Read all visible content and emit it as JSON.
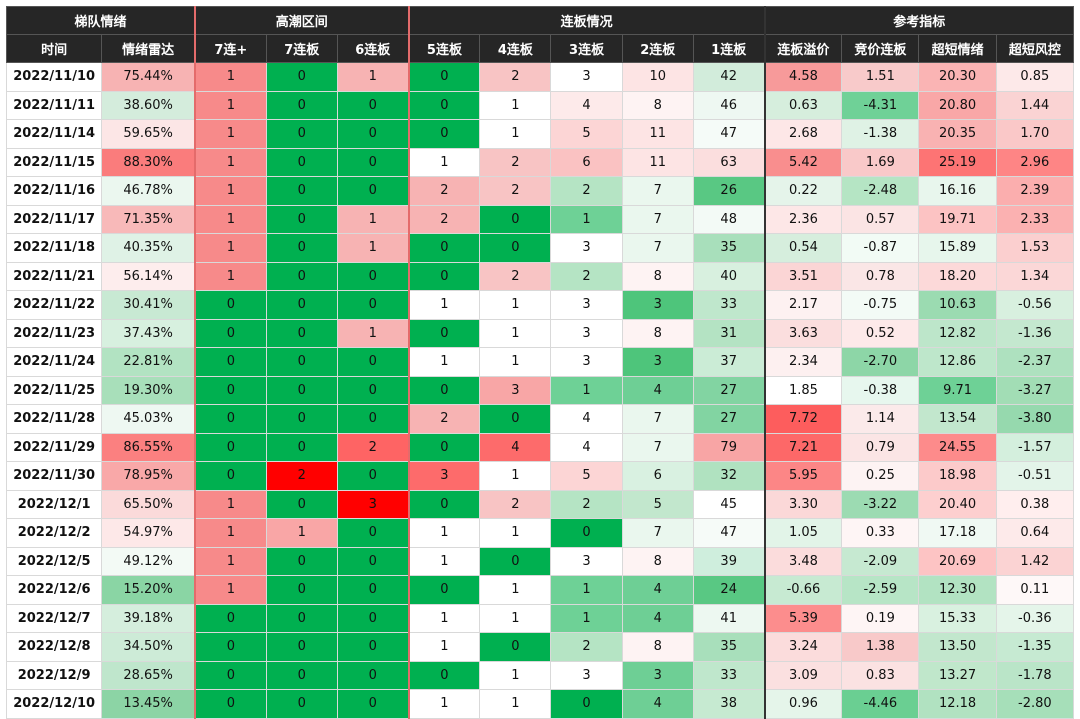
{
  "chart_data": {
    "type": "table",
    "groups": [
      {
        "label": "梯队情绪",
        "span": 2
      },
      {
        "label": "高潮区间",
        "span": 3
      },
      {
        "label": "连板情况",
        "span": 5
      },
      {
        "label": "参考指标",
        "span": 4
      }
    ],
    "columns": [
      "时间",
      "情绪雷达",
      "7连+",
      "7连板",
      "6连板",
      "5连板",
      "4连板",
      "3连板",
      "2连板",
      "1连板",
      "连板溢价",
      "竞价连板",
      "超短情绪",
      "超短风控"
    ],
    "rows": [
      [
        "2022/11/10",
        "75.44%",
        "1",
        "0",
        "1",
        "0",
        "2",
        "3",
        "10",
        "42",
        "4.58",
        "1.51",
        "20.30",
        "0.85"
      ],
      [
        "2022/11/11",
        "38.60%",
        "1",
        "0",
        "0",
        "0",
        "1",
        "4",
        "8",
        "46",
        "0.63",
        "-4.31",
        "20.80",
        "1.44"
      ],
      [
        "2022/11/14",
        "59.65%",
        "1",
        "0",
        "0",
        "0",
        "1",
        "5",
        "11",
        "47",
        "2.68",
        "-1.38",
        "20.35",
        "1.70"
      ],
      [
        "2022/11/15",
        "88.30%",
        "1",
        "0",
        "0",
        "1",
        "2",
        "6",
        "11",
        "63",
        "5.42",
        "1.69",
        "25.19",
        "2.96"
      ],
      [
        "2022/11/16",
        "46.78%",
        "1",
        "0",
        "0",
        "2",
        "2",
        "2",
        "7",
        "26",
        "0.22",
        "-2.48",
        "16.16",
        "2.39"
      ],
      [
        "2022/11/17",
        "71.35%",
        "1",
        "0",
        "1",
        "2",
        "0",
        "1",
        "7",
        "48",
        "2.36",
        "0.57",
        "19.71",
        "2.33"
      ],
      [
        "2022/11/18",
        "40.35%",
        "1",
        "0",
        "1",
        "0",
        "0",
        "3",
        "7",
        "35",
        "0.54",
        "-0.87",
        "15.89",
        "1.53"
      ],
      [
        "2022/11/21",
        "56.14%",
        "1",
        "0",
        "0",
        "0",
        "2",
        "2",
        "8",
        "40",
        "3.51",
        "0.78",
        "18.20",
        "1.34"
      ],
      [
        "2022/11/22",
        "30.41%",
        "0",
        "0",
        "0",
        "1",
        "1",
        "3",
        "3",
        "33",
        "2.17",
        "-0.75",
        "10.63",
        "-0.56"
      ],
      [
        "2022/11/23",
        "37.43%",
        "0",
        "0",
        "1",
        "0",
        "1",
        "3",
        "8",
        "31",
        "3.63",
        "0.52",
        "12.82",
        "-1.36"
      ],
      [
        "2022/11/24",
        "22.81%",
        "0",
        "0",
        "0",
        "1",
        "1",
        "3",
        "3",
        "37",
        "2.34",
        "-2.70",
        "12.86",
        "-2.37"
      ],
      [
        "2022/11/25",
        "19.30%",
        "0",
        "0",
        "0",
        "0",
        "3",
        "1",
        "4",
        "27",
        "1.85",
        "-0.38",
        "9.71",
        "-3.27"
      ],
      [
        "2022/11/28",
        "45.03%",
        "0",
        "0",
        "0",
        "2",
        "0",
        "4",
        "7",
        "27",
        "7.72",
        "1.14",
        "13.54",
        "-3.80"
      ],
      [
        "2022/11/29",
        "86.55%",
        "0",
        "0",
        "2",
        "0",
        "4",
        "4",
        "7",
        "79",
        "7.21",
        "0.79",
        "24.55",
        "-1.57"
      ],
      [
        "2022/11/30",
        "78.95%",
        "0",
        "2",
        "0",
        "3",
        "1",
        "5",
        "6",
        "32",
        "5.95",
        "0.25",
        "18.98",
        "-0.51"
      ],
      [
        "2022/12/1",
        "65.50%",
        "1",
        "0",
        "3",
        "0",
        "2",
        "2",
        "5",
        "45",
        "3.30",
        "-3.22",
        "20.40",
        "0.38"
      ],
      [
        "2022/12/2",
        "54.97%",
        "1",
        "1",
        "0",
        "1",
        "1",
        "0",
        "7",
        "47",
        "1.05",
        "0.33",
        "17.18",
        "0.64"
      ],
      [
        "2022/12/5",
        "49.12%",
        "1",
        "0",
        "0",
        "1",
        "0",
        "3",
        "8",
        "39",
        "3.48",
        "-2.09",
        "20.69",
        "1.42"
      ],
      [
        "2022/12/6",
        "15.20%",
        "1",
        "0",
        "0",
        "0",
        "1",
        "1",
        "4",
        "24",
        "-0.66",
        "-2.59",
        "12.30",
        "0.11"
      ],
      [
        "2022/12/7",
        "39.18%",
        "0",
        "0",
        "0",
        "1",
        "1",
        "1",
        "4",
        "41",
        "5.39",
        "0.19",
        "15.33",
        "-0.36"
      ],
      [
        "2022/12/8",
        "34.50%",
        "0",
        "0",
        "0",
        "1",
        "0",
        "2",
        "8",
        "35",
        "3.24",
        "1.38",
        "13.50",
        "-1.35"
      ],
      [
        "2022/12/9",
        "28.65%",
        "0",
        "0",
        "0",
        "0",
        "1",
        "3",
        "3",
        "33",
        "3.09",
        "0.83",
        "13.27",
        "-1.78"
      ],
      [
        "2022/12/10",
        "13.45%",
        "0",
        "0",
        "0",
        "1",
        "1",
        "0",
        "4",
        "38",
        "0.96",
        "-4.46",
        "12.18",
        "-2.80"
      ]
    ],
    "cell_colors": [
      [
        "#ffffff",
        "#f7b3b3",
        "#f78a8a",
        "#00b050",
        "#f7b3b3",
        "#00b050",
        "#f8c4c4",
        "#ffffff",
        "#fde4e4",
        "#d2ecdb",
        "#f79a9a",
        "#f8caca",
        "#fab4b4",
        "#fde9e9"
      ],
      [
        "#ffffff",
        "#d4ecdc",
        "#f78a8a",
        "#00b050",
        "#00b050",
        "#00b050",
        "#ffffff",
        "#fdeaea",
        "#fef3f3",
        "#eef8f2",
        "#d6eedd",
        "#6fd197",
        "#f9a7a7",
        "#fad3d3"
      ],
      [
        "#ffffff",
        "#fce6e6",
        "#f78a8a",
        "#00b050",
        "#00b050",
        "#00b050",
        "#ffffff",
        "#fcd5d5",
        "#fde4e4",
        "#f5fbf8",
        "#fde7e7",
        "#dff2e5",
        "#f9b2b2",
        "#fac8c8"
      ],
      [
        "#ffffff",
        "#fa7c7c",
        "#f78a8a",
        "#00b050",
        "#00b050",
        "#ffffff",
        "#f8c4c4",
        "#fac2c2",
        "#fde4e4",
        "#fbdede",
        "#f98e8e",
        "#f9c9c9",
        "#fd7474",
        "#fe8585"
      ],
      [
        "#ffffff",
        "#ebf7ef",
        "#f78a8a",
        "#00b050",
        "#00b050",
        "#f7b3b3",
        "#f8c4c4",
        "#b5e4c4",
        "#eaf7ee",
        "#59c883",
        "#e5f4ea",
        "#b5e5c4",
        "#e8f6ed",
        "#fbaeae"
      ],
      [
        "#ffffff",
        "#f8b9b9",
        "#f78a8a",
        "#00b050",
        "#f7b3b3",
        "#f7b3b3",
        "#00b050",
        "#6ed196",
        "#eaf7ee",
        "#f3faf6",
        "#fde7e7",
        "#fbe4e4",
        "#fcc3c3",
        "#fbb1b1"
      ],
      [
        "#ffffff",
        "#dff2e6",
        "#f78a8a",
        "#00b050",
        "#f7b3b3",
        "#00b050",
        "#00b050",
        "#ffffff",
        "#eaf7ee",
        "#a8dfbb",
        "#d6eedd",
        "#f2fbf5",
        "#e7f6ec",
        "#fbcfcf"
      ],
      [
        "#ffffff",
        "#fdeded",
        "#f78a8a",
        "#00b050",
        "#00b050",
        "#00b050",
        "#f8c4c4",
        "#b5e4c4",
        "#fef3f3",
        "#d8f0df",
        "#fbd5d5",
        "#fae6e6",
        "#fcd9d9",
        "#fbd7d7"
      ],
      [
        "#ffffff",
        "#c8e9d3",
        "#00b050",
        "#00b050",
        "#00b050",
        "#ffffff",
        "#ffffff",
        "#ffffff",
        "#4ec57b",
        "#bfe7cc",
        "#fdf1f1",
        "#f3fbf6",
        "#9bdbb1",
        "#d8f0df"
      ],
      [
        "#ffffff",
        "#d7f0df",
        "#00b050",
        "#00b050",
        "#f7b3b3",
        "#00b050",
        "#ffffff",
        "#ffffff",
        "#fef3f3",
        "#b4e3c3",
        "#fbdede",
        "#fde9e9",
        "#bde6ca",
        "#c4e8cf"
      ],
      [
        "#ffffff",
        "#b2e3c2",
        "#00b050",
        "#00b050",
        "#00b050",
        "#ffffff",
        "#ffffff",
        "#ffffff",
        "#4ec57b",
        "#cbecd6",
        "#fdf0f0",
        "#8dd6a7",
        "#bee7cb",
        "#aee1bf"
      ],
      [
        "#ffffff",
        "#a8dfba",
        "#00b050",
        "#00b050",
        "#00b050",
        "#00b050",
        "#f8a6a6",
        "#6ed196",
        "#6ecf95",
        "#82d4a2",
        "#ffffff",
        "#e7f7ee",
        "#6ed196",
        "#a2ddb5"
      ],
      [
        "#ffffff",
        "#eef8f2",
        "#00b050",
        "#00b050",
        "#00b050",
        "#f7b3b3",
        "#00b050",
        "#ffffff",
        "#eaf7ee",
        "#82d4a2",
        "#fd5d5d",
        "#fbeaea",
        "#c2e7cd",
        "#96d9ae"
      ],
      [
        "#ffffff",
        "#fb8080",
        "#00b050",
        "#00b050",
        "#fe6464",
        "#00b050",
        "#fd6b6b",
        "#ffffff",
        "#eaf7ee",
        "#f8a5a5",
        "#fd6868",
        "#fbe5e5",
        "#fd8b8b",
        "#d4efdd"
      ],
      [
        "#ffffff",
        "#f9a8a8",
        "#00b050",
        "#ff0000",
        "#00b050",
        "#fd6b6b",
        "#ffffff",
        "#fcd5d5",
        "#d9f1e1",
        "#b0e2c0",
        "#fc8686",
        "#fdf3f3",
        "#fccaca",
        "#e3f4e9"
      ],
      [
        "#ffffff",
        "#fbdada",
        "#f78a8a",
        "#00b050",
        "#ff0000",
        "#00b050",
        "#f8c4c4",
        "#b5e4c4",
        "#c2e7cd",
        "#ffffff",
        "#fbd8d8",
        "#9cdbb2",
        "#fdcfcf",
        "#ffeeee"
      ],
      [
        "#ffffff",
        "#fde8e8",
        "#f78a8a",
        "#f9a6a6",
        "#00b050",
        "#ffffff",
        "#ffffff",
        "#00b050",
        "#eaf7ee",
        "#f6fbf8",
        "#e2f4e8",
        "#fef5f5",
        "#f0f9f3",
        "#fdeaea"
      ],
      [
        "#ffffff",
        "#f3faf5",
        "#f78a8a",
        "#00b050",
        "#00b050",
        "#ffffff",
        "#00b050",
        "#ffffff",
        "#fef3f3",
        "#cfeedd",
        "#fbdcdc",
        "#c6e9d1",
        "#fdc4c4",
        "#fbd3d3"
      ],
      [
        "#ffffff",
        "#8ad5a4",
        "#f78a8a",
        "#00b050",
        "#00b050",
        "#00b050",
        "#ffffff",
        "#6ed196",
        "#6ecf95",
        "#59c883",
        "#c7ead2",
        "#b7e5c6",
        "#b2e3c2",
        "#fef8f8"
      ],
      [
        "#ffffff",
        "#d5eedd",
        "#00b050",
        "#00b050",
        "#00b050",
        "#ffffff",
        "#ffffff",
        "#6ed196",
        "#6ecf95",
        "#edf8f1",
        "#fc8d8d",
        "#fef5f5",
        "#d9f1e0",
        "#e5f5ea"
      ],
      [
        "#ffffff",
        "#cdebd7",
        "#00b050",
        "#00b050",
        "#00b050",
        "#ffffff",
        "#00b050",
        "#b5e4c4",
        "#fef3f3",
        "#a8dfbb",
        "#fbdcdc",
        "#f8c9c9",
        "#c2e7cd",
        "#c6ead2"
      ],
      [
        "#ffffff",
        "#bfe6cc",
        "#00b050",
        "#00b050",
        "#00b050",
        "#00b050",
        "#ffffff",
        "#ffffff",
        "#6ecf95",
        "#bfe7cc",
        "#fbe0e0",
        "#fbe2e2",
        "#c0e7cb",
        "#bae5c8"
      ],
      [
        "#ffffff",
        "#8cd4a5",
        "#00b050",
        "#00b050",
        "#00b050",
        "#ffffff",
        "#ffffff",
        "#00b050",
        "#6ecf95",
        "#c6ead1",
        "#e5f5ea",
        "#6acf92",
        "#b1e2c1",
        "#a6dfb9"
      ]
    ],
    "title": "",
    "xlabel": "",
    "ylabel": ""
  }
}
